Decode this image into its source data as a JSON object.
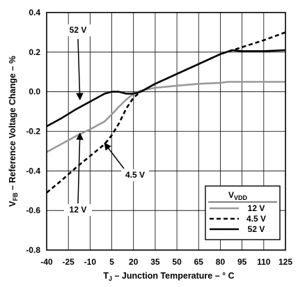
{
  "chart_data": {
    "type": "line",
    "xlabel": {
      "main": "T",
      "sub": "J",
      "rest": " – Junction Temperature – ° C"
    },
    "ylabel": {
      "main": "V",
      "sub": "FB",
      "rest": " – Reference Voltage Change – %"
    },
    "xlim": [
      -40,
      125
    ],
    "ylim": [
      -0.8,
      0.4
    ],
    "xticks": [
      -40,
      -25,
      -10,
      5,
      20,
      35,
      50,
      65,
      80,
      95,
      110,
      125
    ],
    "xtick_labels": [
      "-40",
      "-25",
      "-10",
      "5",
      "20",
      "35",
      "50",
      "65",
      "80",
      "95",
      "110",
      "125"
    ],
    "yticks": [
      -0.8,
      -0.6,
      -0.4,
      -0.2,
      0.0,
      0.2,
      0.4
    ],
    "ytick_labels": [
      "-0.8",
      "-0.6",
      "-0.4",
      "-0.2",
      "0.0",
      "0.2",
      "0.4"
    ],
    "grid": true,
    "legend": {
      "title_main": "V",
      "title_sub": "VDD",
      "position": "lower-right"
    },
    "series": [
      {
        "name": "12 V",
        "color": "#999999",
        "style": "solid",
        "points": [
          [
            -40,
            -0.305
          ],
          [
            -30,
            -0.265
          ],
          [
            -20,
            -0.225
          ],
          [
            -10,
            -0.19
          ],
          [
            0,
            -0.15
          ],
          [
            5,
            -0.115
          ],
          [
            10,
            -0.075
          ],
          [
            15,
            -0.04
          ],
          [
            20,
            -0.01
          ],
          [
            25,
            0.005
          ],
          [
            35,
            0.02
          ],
          [
            50,
            0.03
          ],
          [
            65,
            0.04
          ],
          [
            80,
            0.045
          ],
          [
            85,
            0.05
          ],
          [
            95,
            0.05
          ],
          [
            110,
            0.05
          ],
          [
            125,
            0.05
          ]
        ]
      },
      {
        "name": "4.5 V",
        "color": "#000000",
        "style": "dashed",
        "points": [
          [
            -40,
            -0.51
          ],
          [
            -30,
            -0.45
          ],
          [
            -20,
            -0.385
          ],
          [
            -10,
            -0.325
          ],
          [
            0,
            -0.265
          ],
          [
            5,
            -0.22
          ],
          [
            10,
            -0.16
          ],
          [
            15,
            -0.085
          ],
          [
            20,
            -0.03
          ],
          [
            25,
            0.0
          ],
          [
            35,
            0.04
          ],
          [
            50,
            0.09
          ],
          [
            65,
            0.14
          ],
          [
            80,
            0.19
          ],
          [
            95,
            0.225
          ],
          [
            110,
            0.26
          ],
          [
            125,
            0.3
          ]
        ]
      },
      {
        "name": "52 V",
        "color": "#000000",
        "style": "solid",
        "points": [
          [
            -40,
            -0.175
          ],
          [
            -30,
            -0.135
          ],
          [
            -20,
            -0.09
          ],
          [
            -10,
            -0.05
          ],
          [
            0,
            -0.01
          ],
          [
            5,
            0.0
          ],
          [
            10,
            0.0
          ],
          [
            15,
            -0.01
          ],
          [
            20,
            -0.01
          ],
          [
            25,
            0.0
          ],
          [
            35,
            0.04
          ],
          [
            50,
            0.09
          ],
          [
            65,
            0.14
          ],
          [
            80,
            0.19
          ],
          [
            88,
            0.21
          ],
          [
            95,
            0.205
          ],
          [
            110,
            0.205
          ],
          [
            125,
            0.21
          ]
        ]
      }
    ],
    "annotations": [
      {
        "text": "52 V",
        "series": "52 V",
        "arrow_to": [
          -17,
          -0.04
        ]
      },
      {
        "text": "4.5 V",
        "series": "4.5 V",
        "arrow_to": [
          0,
          -0.26
        ]
      },
      {
        "text": "12 V",
        "series": "12 V",
        "arrow_to": [
          -17,
          -0.21
        ]
      }
    ]
  }
}
